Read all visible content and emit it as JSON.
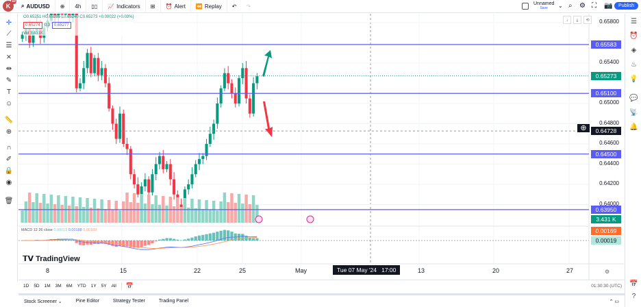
{
  "topbar": {
    "avatar": "K",
    "notif": "10",
    "symbol": "AUDUSD",
    "interval": "4h",
    "indicators": "Indicators",
    "alert": "Alert",
    "replay": "Replay",
    "layout_name": "Unnamed",
    "layout_sub": "Save",
    "publish": "Publish"
  },
  "legend": {
    "ohlc": "O0.65251 H0.65285 L0.65240 C0.65273 +0.00022 (+0.03%)",
    "bid": "0.65274",
    "spread": "0.3",
    "ask": "0.65277",
    "vol_label": "Vol",
    "vol_value": "3.431K",
    "macd_label": "MACD 12 26 close",
    "macd_hist": "0.00019",
    "macd_line": "0.00188",
    "macd_signal": "0.00169"
  },
  "colors": {
    "up": "#089981",
    "down": "#f23645",
    "hline": "#5b5bf5",
    "macd": "#5b7cf5",
    "signal": "#ff9a5c"
  },
  "chart_data": {
    "type": "candlestick",
    "interval": "4h",
    "price_ticks": [
      "0.65800",
      "0.65400",
      "0.65000",
      "0.64800",
      "0.64600",
      "0.64400",
      "0.64200",
      "0.64000"
    ],
    "time_ticks": [
      "8",
      "15",
      "22",
      "25",
      "May",
      "13",
      "20",
      "27"
    ],
    "closes": [
      0.6568,
      0.6575,
      0.656,
      0.6572,
      0.658,
      0.6565,
      0.6575,
      0.6582,
      0.659,
      0.6585,
      0.6595,
      0.6588,
      0.6592,
      0.6585,
      0.659,
      0.6515,
      0.652,
      0.6535,
      0.655,
      0.653,
      0.6545,
      0.6528,
      0.6535,
      0.652,
      0.6495,
      0.648,
      0.6465,
      0.649,
      0.646,
      0.6455,
      0.643,
      0.642,
      0.641,
      0.6418,
      0.6425,
      0.6412,
      0.643,
      0.644,
      0.6448,
      0.6435,
      0.644,
      0.6425,
      0.641,
      0.64,
      0.6395,
      0.6415,
      0.642,
      0.643,
      0.644,
      0.6445,
      0.6448,
      0.646,
      0.647,
      0.648,
      0.65,
      0.6515,
      0.653,
      0.652,
      0.651,
      0.65,
      0.6525,
      0.6535,
      0.6505,
      0.649,
      0.652,
      0.6527
    ],
    "horizontal_levels": [
      "0.65583",
      "0.65100",
      "0.64500",
      "0.63950"
    ],
    "last_price": "0.65273",
    "countdown": "03:29:31",
    "crosshair_price": "0.64728",
    "crosshair_time": "Tue 07 May '24   17:00",
    "volume_tag": "3.431 K",
    "signal_tag": "0.00169",
    "hist_tag": "0.00019"
  },
  "watermark": "TradingView",
  "ranges": [
    "1D",
    "5D",
    "1M",
    "3M",
    "6M",
    "YTD",
    "1Y",
    "5Y",
    "All"
  ],
  "clock": "01:30:30 (UTC)",
  "bottom_tabs": [
    "Stock Screener",
    "Pine Editor",
    "Strategy Tester",
    "Trading Panel"
  ]
}
